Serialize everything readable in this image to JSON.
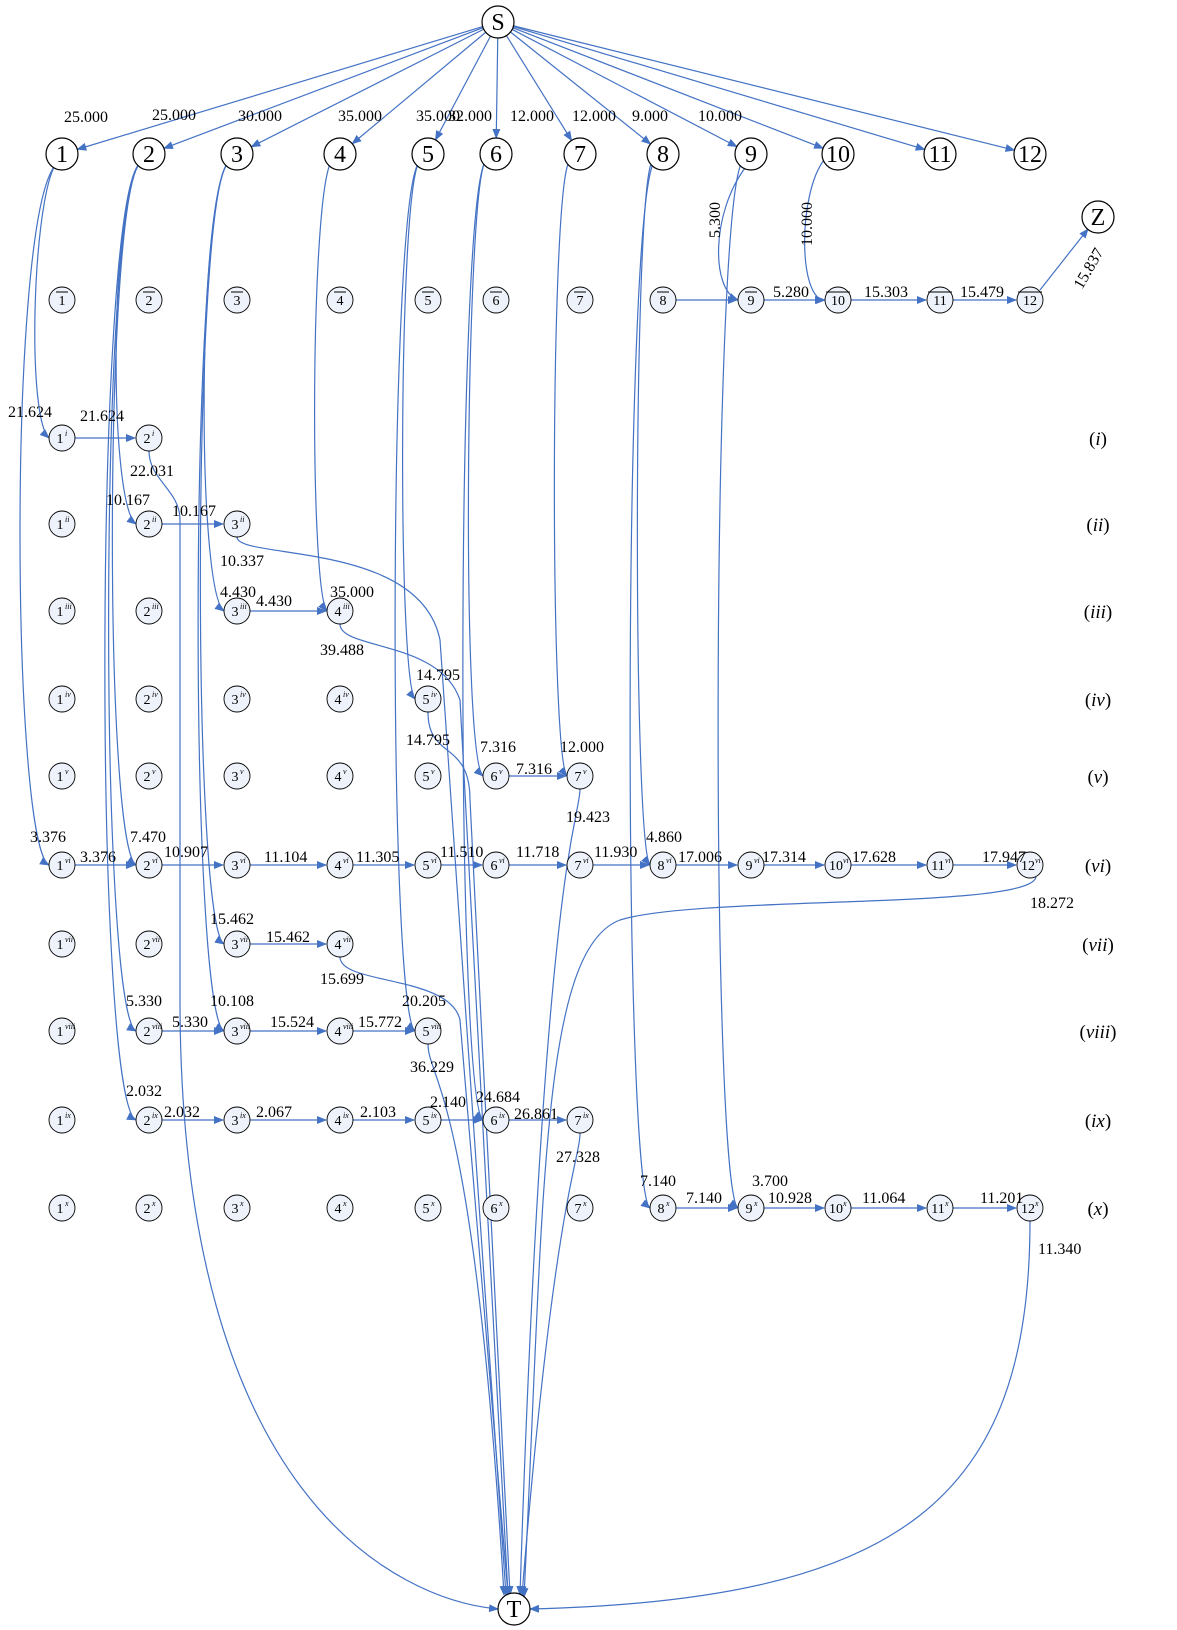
{
  "diagram": {
    "source": "S",
    "sink": "T",
    "terminal": "Z",
    "colors": {
      "edge": "#4472c4",
      "node_fill": "#eef2fa",
      "stroke": "#000000"
    },
    "top_nodes": [
      "1",
      "2",
      "3",
      "4",
      "5",
      "6",
      "7",
      "8",
      "9",
      "10",
      "11",
      "12"
    ],
    "source_edge_labels": [
      "25.000",
      "25.000",
      "30.000",
      "35.000",
      "35.000",
      "32.000",
      "12.000",
      "12.000",
      "9.000",
      "10.000"
    ],
    "bar_nodes": [
      "1",
      "2",
      "3",
      "4",
      "5",
      "6",
      "7",
      "8",
      "9",
      "10",
      "11",
      "12"
    ],
    "row_labels": [
      {
        "open": "(",
        "roman": "i",
        "close": ")"
      },
      {
        "open": "(",
        "roman": "ii",
        "close": ")"
      },
      {
        "open": "(",
        "roman": "iii",
        "close": ")"
      },
      {
        "open": "(",
        "roman": "iv",
        "close": ")"
      },
      {
        "open": "(",
        "roman": "v",
        "close": ")"
      },
      {
        "open": "(",
        "roman": "vi",
        "close": ")"
      },
      {
        "open": "(",
        "roman": "vii",
        "close": ")"
      },
      {
        "open": "(",
        "roman": "viii",
        "close": ")"
      },
      {
        "open": "(",
        "roman": "ix",
        "close": ")"
      },
      {
        "open": "(",
        "roman": "x",
        "close": ")"
      }
    ],
    "edge_labels": [
      "5.300",
      "10.000",
      "5.280",
      "15.303",
      "15.479",
      "15.837",
      "21.624",
      "21.624",
      "22.031",
      "10.167",
      "10.167",
      "10.337",
      "4.430",
      "4.430",
      "35.000",
      "39.488",
      "14.795",
      "14.795",
      "7.316",
      "7.316",
      "12.000",
      "19.423",
      "3.376",
      "3.376",
      "7.470",
      "10.907",
      "11.104",
      "11.305",
      "11.510",
      "11.718",
      "11.930",
      "4.860",
      "17.006",
      "17.314",
      "17.628",
      "17.947",
      "18.272",
      "15.462",
      "15.462",
      "15.699",
      "5.330",
      "5.330",
      "10.108",
      "15.524",
      "15.772",
      "20.205",
      "36.229",
      "2.032",
      "2.032",
      "2.067",
      "2.103",
      "2.140",
      "24.684",
      "26.861",
      "27.328",
      "7.140",
      "7.140",
      "3.700",
      "10.928",
      "11.064",
      "11.201",
      "11.340"
    ]
  }
}
